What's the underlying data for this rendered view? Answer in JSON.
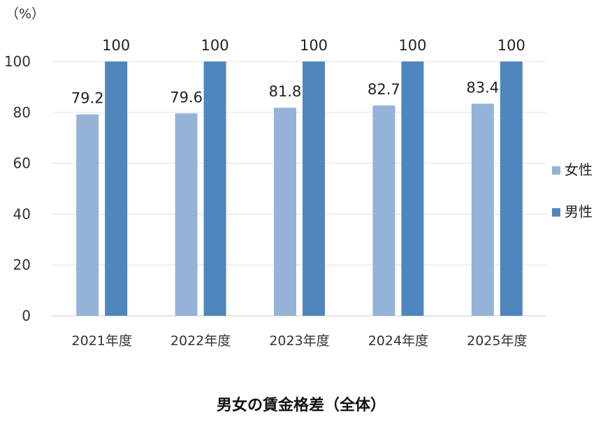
{
  "chart_data": {
    "type": "bar",
    "title": "",
    "caption": "男女の賃金格差（全体）",
    "y_unit": "（%）",
    "xlabel": "",
    "ylabel": "",
    "ylim": [
      0,
      100
    ],
    "yticks": [
      0,
      20,
      40,
      60,
      80,
      100
    ],
    "grid": true,
    "legend_position": "right",
    "categories": [
      "2021年度",
      "2022年度",
      "2023年度",
      "2024年度",
      "2025年度"
    ],
    "series": [
      {
        "name": "女性",
        "color": "#95b3d9",
        "values": [
          79.2,
          79.6,
          81.8,
          82.7,
          83.4
        ],
        "labels": [
          "79.2",
          "79.6",
          "81.8",
          "82.7",
          "83.4"
        ]
      },
      {
        "name": "男性",
        "color": "#4f86be",
        "values": [
          100,
          100,
          100,
          100,
          100
        ],
        "labels": [
          "100",
          "100",
          "100",
          "100",
          "100"
        ]
      }
    ]
  }
}
